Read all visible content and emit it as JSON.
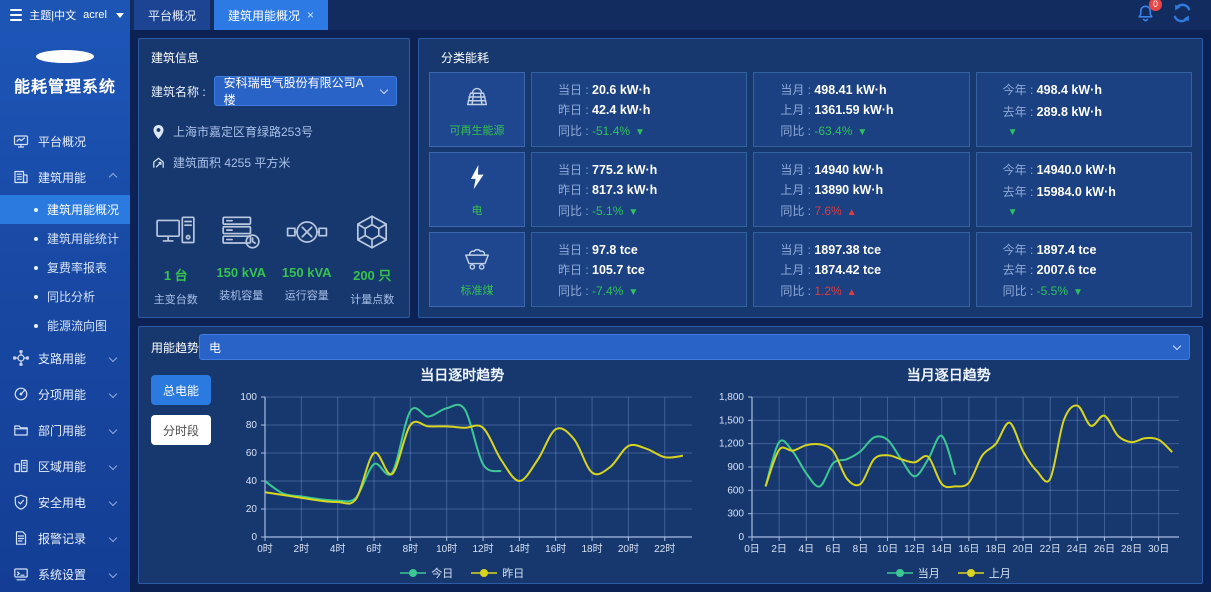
{
  "topbar": {
    "user_menu": "主题|中文",
    "username": "acrel",
    "close_glyph": "×",
    "notification_count": "0",
    "tabs": [
      {
        "id": "platform-overview",
        "label": "平台概况",
        "active": false
      },
      {
        "id": "building-energy-overview",
        "label": "建筑用能概况",
        "active": true,
        "closable": true
      }
    ]
  },
  "sidebar": {
    "app_title": "能耗管理系统",
    "items": [
      {
        "id": "platform-overview",
        "icon": "monitor",
        "label": "平台概况",
        "chevron": false
      },
      {
        "id": "building-energy",
        "icon": "building",
        "label": "建筑用能",
        "chevron": true,
        "expanded": true,
        "children": [
          {
            "id": "building-energy-overview",
            "label": "建筑用能概况",
            "active": true
          },
          {
            "id": "building-energy-stats",
            "label": "建筑用能统计",
            "active": false
          },
          {
            "id": "tariff-report",
            "label": "复费率报表",
            "active": false
          },
          {
            "id": "yoy-analysis",
            "label": "同比分析",
            "active": false
          },
          {
            "id": "energy-flow-diagram",
            "label": "能源流向图",
            "active": false
          }
        ]
      },
      {
        "id": "branch-energy",
        "icon": "branch",
        "label": "支路用能",
        "chevron": true
      },
      {
        "id": "subitem-energy",
        "icon": "target",
        "label": "分项用能",
        "chevron": true
      },
      {
        "id": "department-energy",
        "icon": "folder",
        "label": "部门用能",
        "chevron": true
      },
      {
        "id": "region-energy",
        "icon": "district",
        "label": "区域用能",
        "chevron": true
      },
      {
        "id": "safe-electricity",
        "icon": "shield",
        "label": "安全用电",
        "chevron": true
      },
      {
        "id": "alarm-records",
        "icon": "document",
        "label": "报警记录",
        "chevron": true
      },
      {
        "id": "system-settings",
        "icon": "console",
        "label": "系统设置",
        "chevron": true
      }
    ]
  },
  "building_info": {
    "title": "建筑信息",
    "name_label": "建筑名称 :",
    "name_value": "安科瑞电气股份有限公司A楼",
    "address": "上海市嘉定区育绿路253号",
    "area": "建筑面积 4255 平方米",
    "stats": [
      {
        "id": "main-transformers",
        "icon": "computer",
        "value": "1 台",
        "label": "主变台数"
      },
      {
        "id": "installed-capacity",
        "icon": "server",
        "value": "150 kVA",
        "label": "装机容量"
      },
      {
        "id": "running-capacity",
        "icon": "transformer",
        "value": "150 kVA",
        "label": "运行容量"
      },
      {
        "id": "metering-points",
        "icon": "hexnet",
        "value": "200 只",
        "label": "计量点数"
      }
    ]
  },
  "category_energy": {
    "title": "分类能耗",
    "rows": [
      {
        "id": "renewable",
        "icon": "solar",
        "name": "可再生能源",
        "cells": [
          {
            "l1": "当日 : ",
            "v1": "20.6 kW·h",
            "l2": "昨日 : ",
            "v2": "42.4 kW·h",
            "cmp_label": "同比 : ",
            "cmp_value": "-51.4%",
            "dir": "down"
          },
          {
            "l1": "当月 : ",
            "v1": "498.41 kW·h",
            "l2": "上月 : ",
            "v2": "1361.59 kW·h",
            "cmp_label": "同比 : ",
            "cmp_value": "-63.4%",
            "dir": "down"
          },
          {
            "l1": "今年 : ",
            "v1": "498.4 kW·h",
            "l2": "去年 : ",
            "v2": "289.8 kW·h",
            "cmp_label": "",
            "cmp_value": "",
            "dir": "down"
          }
        ]
      },
      {
        "id": "electricity",
        "icon": "lightning",
        "name": "电",
        "cells": [
          {
            "l1": "当日 : ",
            "v1": "775.2 kW·h",
            "l2": "昨日 : ",
            "v2": "817.3 kW·h",
            "cmp_label": "同比 : ",
            "cmp_value": "-5.1%",
            "dir": "down"
          },
          {
            "l1": "当月 : ",
            "v1": "14940 kW·h",
            "l2": "上月 : ",
            "v2": "13890 kW·h",
            "cmp_label": "同比 : ",
            "cmp_value": "7.6%",
            "dir": "up"
          },
          {
            "l1": "今年 : ",
            "v1": "14940.0 kW·h",
            "l2": "去年 : ",
            "v2": "15984.0 kW·h",
            "cmp_label": "",
            "cmp_value": "",
            "dir": "down"
          }
        ]
      },
      {
        "id": "standard-coal",
        "icon": "coal",
        "name": "标准煤",
        "cells": [
          {
            "l1": "当日 : ",
            "v1": "97.8 tce",
            "l2": "昨日 : ",
            "v2": "105.7 tce",
            "cmp_label": "同比 : ",
            "cmp_value": "-7.4%",
            "dir": "down"
          },
          {
            "l1": "当月 : ",
            "v1": "1897.38 tce",
            "l2": "上月 : ",
            "v2": "1874.42 tce",
            "cmp_label": "同比 : ",
            "cmp_value": "1.2%",
            "dir": "up"
          },
          {
            "l1": "今年 : ",
            "v1": "1897.4 tce",
            "l2": "去年 : ",
            "v2": "2007.6 tce",
            "cmp_label": "同比 : ",
            "cmp_value": "-5.5%",
            "dir": "down"
          }
        ]
      }
    ]
  },
  "trend": {
    "title": "用能趋势",
    "buttons": [
      {
        "id": "total-energy",
        "label": "总电能",
        "active": true
      },
      {
        "id": "time-period",
        "label": "分时段",
        "active": false
      }
    ],
    "dropdown_value": "电"
  },
  "symbols": {
    "up": "▲",
    "down": "▼"
  },
  "colors": {
    "accent": "#2b7ae0",
    "green": "#2fc25b",
    "red": "#e23b3b",
    "teal": "#3cc795",
    "yellow": "#d8d51f"
  },
  "chart_data": [
    {
      "type": "line",
      "title": "当日逐时趋势",
      "xlabel": "",
      "ylabel": "",
      "xlim": [
        0,
        23.5
      ],
      "ylim": [
        0,
        100
      ],
      "xticks": [
        0,
        2,
        4,
        6,
        8,
        10,
        12,
        14,
        16,
        18,
        20,
        22
      ],
      "xtick_labels": [
        "0时",
        "2时",
        "4时",
        "6时",
        "8时",
        "10时",
        "12时",
        "14时",
        "16时",
        "18时",
        "20时",
        "22时"
      ],
      "yticks": [
        0,
        20,
        40,
        60,
        80,
        100
      ],
      "ytick_labels": [
        "0",
        "20",
        "40",
        "60",
        "80",
        "100"
      ],
      "grid": true,
      "legend_position": "bottom",
      "series": [
        {
          "name": "今日",
          "color": "#3cc795",
          "x": [
            0,
            1,
            2,
            3,
            4,
            5,
            6,
            7,
            8,
            9,
            10,
            11,
            12,
            13
          ],
          "values": [
            40,
            31,
            29,
            27,
            26,
            28,
            52,
            46,
            90,
            86,
            92,
            91,
            52,
            47
          ]
        },
        {
          "name": "昨日",
          "color": "#d8d51f",
          "x": [
            0,
            1,
            2,
            3,
            4,
            5,
            6,
            7,
            8,
            9,
            10,
            11,
            12,
            13,
            14,
            15,
            16,
            17,
            18,
            19,
            20,
            21,
            22,
            23
          ],
          "values": [
            32,
            30,
            28,
            26,
            25,
            27,
            60,
            45,
            80,
            79,
            79,
            78,
            78,
            55,
            40,
            55,
            77,
            70,
            46,
            50,
            65,
            63,
            57,
            58
          ]
        }
      ]
    },
    {
      "type": "line",
      "title": "当月逐日趋势",
      "xlabel": "",
      "ylabel": "",
      "xlim": [
        0,
        31.5
      ],
      "ylim": [
        0,
        1800
      ],
      "xticks": [
        0,
        2,
        4,
        6,
        8,
        10,
        12,
        14,
        16,
        18,
        20,
        22,
        24,
        26,
        28,
        30
      ],
      "xtick_labels": [
        "0日",
        "2日",
        "4日",
        "6日",
        "8日",
        "10日",
        "12日",
        "14日",
        "16日",
        "18日",
        "20日",
        "22日",
        "24日",
        "26日",
        "28日",
        "30日"
      ],
      "yticks": [
        0,
        300,
        600,
        900,
        1200,
        1500,
        1800
      ],
      "ytick_labels": [
        "0",
        "300",
        "600",
        "900",
        "1,200",
        "1,500",
        "1,800"
      ],
      "grid": true,
      "legend_position": "bottom",
      "series": [
        {
          "name": "当月",
          "color": "#3cc795",
          "x": [
            1,
            2,
            3,
            4,
            5,
            6,
            7,
            8,
            9,
            10,
            11,
            12,
            13,
            14,
            15
          ],
          "values": [
            650,
            1220,
            1100,
            820,
            650,
            950,
            1000,
            1100,
            1280,
            1250,
            1000,
            780,
            1000,
            1300,
            800
          ]
        },
        {
          "name": "上月",
          "color": "#d8d51f",
          "x": [
            1,
            2,
            3,
            4,
            5,
            6,
            7,
            8,
            9,
            10,
            11,
            12,
            13,
            14,
            15,
            16,
            17,
            18,
            19,
            20,
            21,
            22,
            23,
            24,
            25,
            26,
            27,
            28,
            29,
            30,
            31
          ],
          "values": [
            650,
            1120,
            1110,
            1180,
            1190,
            1100,
            750,
            680,
            1000,
            1050,
            1000,
            960,
            1030,
            680,
            650,
            700,
            1050,
            1200,
            1470,
            1100,
            850,
            750,
            1500,
            1690,
            1430,
            1560,
            1300,
            1220,
            1270,
            1250,
            1090
          ]
        }
      ]
    }
  ]
}
